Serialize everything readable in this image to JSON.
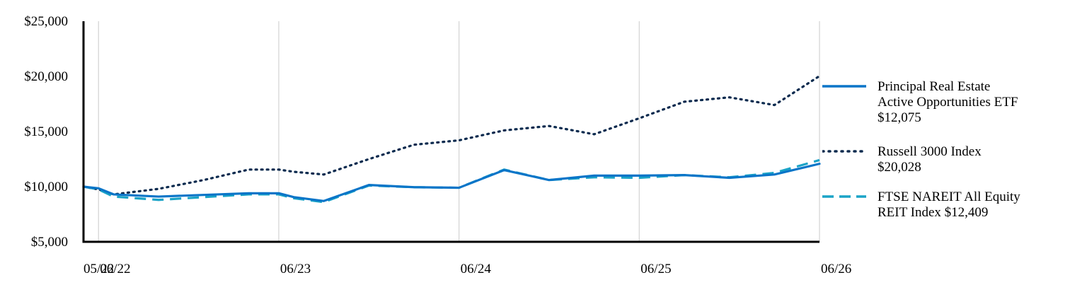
{
  "chart_data": {
    "type": "line",
    "x": [
      "05/22",
      "08/22",
      "11/22",
      "02/23",
      "05/23",
      "06/23",
      "09/23",
      "12/23",
      "03/24",
      "06/24",
      "09/24",
      "12/24",
      "03/25",
      "06/25",
      "09/25",
      "12/25",
      "03/26",
      "06/26"
    ],
    "xticks": [
      "05/22",
      "06/22",
      "06/23",
      "06/24",
      "06/25",
      "06/26"
    ],
    "yticks": [
      "$5,000",
      "$10,000",
      "$15,000",
      "$20,000",
      "$25,000"
    ],
    "ylim": [
      5000,
      25000
    ],
    "grid": "vertical",
    "legend_position": "right",
    "series": [
      {
        "name": "Principal Real Estate Active Opportunities ETF $12,075",
        "color": "#0a75c8",
        "style": "solid",
        "x": [
          "05/22",
          "06/22",
          "07/22",
          "10/22",
          "01/23",
          "04/23",
          "06/23",
          "07/23",
          "09/23",
          "12/23",
          "03/24",
          "06/24",
          "09/24",
          "12/24",
          "03/25",
          "06/25",
          "09/25",
          "12/25",
          "03/26",
          "06/26"
        ],
        "values": [
          10000,
          9850,
          9300,
          9100,
          9250,
          9400,
          9400,
          9050,
          8700,
          10150,
          9950,
          9900,
          11500,
          10600,
          11000,
          11000,
          11050,
          10800,
          11100,
          12075
        ]
      },
      {
        "name": "Russell 3000 Index $20,028",
        "color": "#0b2a4e",
        "style": "dotted",
        "x": [
          "05/22",
          "06/22",
          "07/22",
          "10/22",
          "01/23",
          "04/23",
          "06/23",
          "07/23",
          "09/23",
          "12/23",
          "03/24",
          "06/24",
          "09/24",
          "12/24",
          "03/25",
          "06/25",
          "09/25",
          "12/25",
          "03/26",
          "06/26"
        ],
        "values": [
          10000,
          9750,
          9300,
          9800,
          10600,
          11550,
          11550,
          11350,
          11100,
          12500,
          13800,
          14200,
          15100,
          15500,
          14750,
          16200,
          17700,
          18100,
          17400,
          20028
        ]
      },
      {
        "name": "FTSE NAREIT All Equity REIT Index $12,409",
        "color": "#1aa3c7",
        "style": "dashed",
        "x": [
          "05/22",
          "06/22",
          "07/22",
          "10/22",
          "01/23",
          "04/23",
          "06/23",
          "07/23",
          "09/23",
          "12/23",
          "03/24",
          "06/24",
          "09/24",
          "12/24",
          "03/25",
          "06/25",
          "09/25",
          "12/25",
          "03/26",
          "06/26"
        ],
        "values": [
          10000,
          9750,
          9100,
          8800,
          9050,
          9300,
          9300,
          8950,
          8600,
          10100,
          9950,
          9900,
          11550,
          10600,
          10850,
          10800,
          11050,
          10850,
          11250,
          12409
        ]
      }
    ]
  }
}
